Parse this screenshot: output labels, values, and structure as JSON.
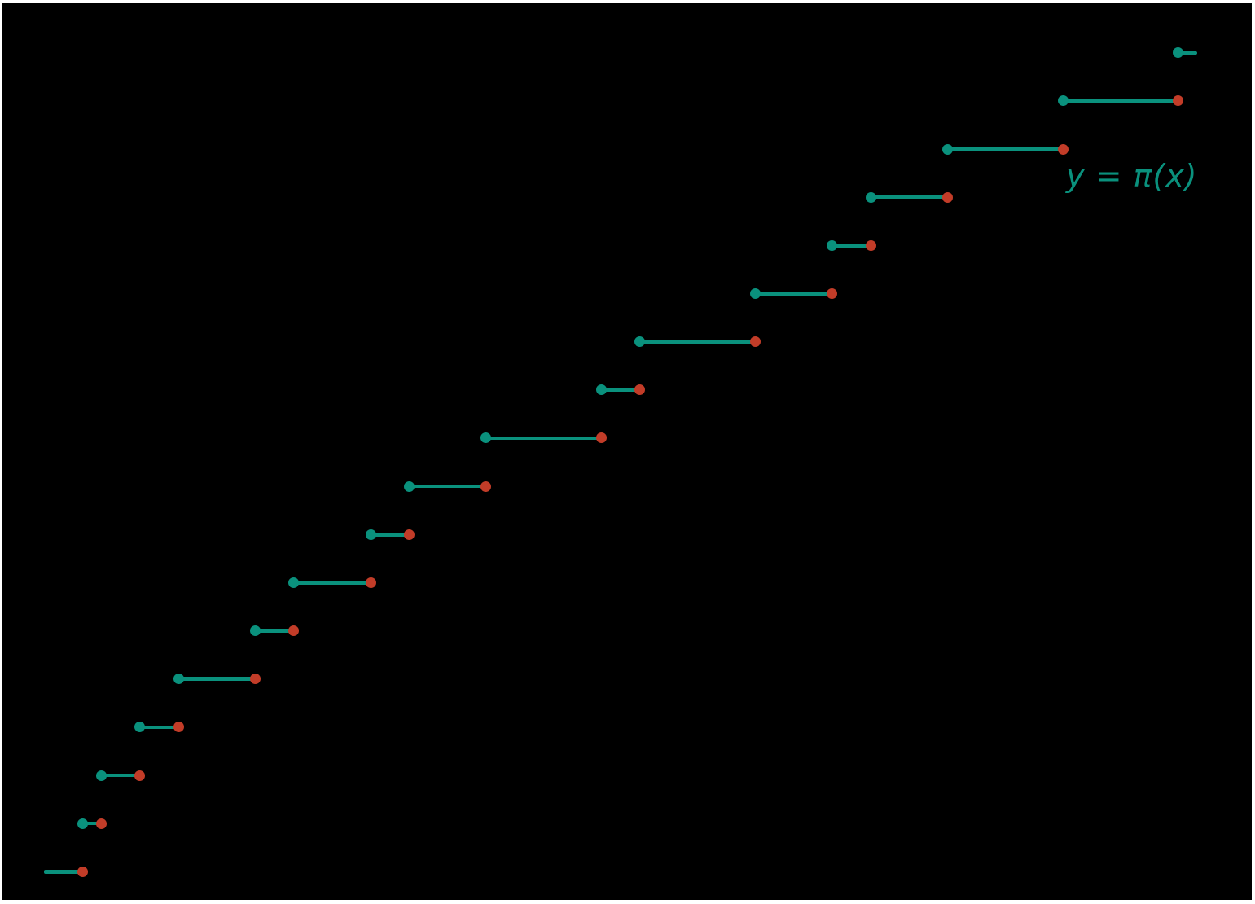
{
  "figure": {
    "background_color": "#000000",
    "frame_color": "#ffffff",
    "label": {
      "text": "y = π(x)",
      "color": "#0a917d"
    }
  },
  "chart_data": {
    "type": "line",
    "subtype": "step-function",
    "title": "",
    "xlabel": "",
    "ylabel": "",
    "xlim": [
      0,
      62.5
    ],
    "ylim": [
      -0.5,
      18
    ],
    "grid": false,
    "legend_position": "none",
    "annotation": "y = π(x)",
    "description": "Prime counting function π(x) plotted for x in [0, 60]; closed left endpoints (teal dots), open right endpoints (red dots)",
    "primes": [
      2,
      3,
      5,
      7,
      11,
      13,
      17,
      19,
      23,
      29,
      31,
      37,
      41,
      43,
      47,
      53,
      59
    ],
    "line_color": "#0a917d",
    "closed_dot_color": "#0a917d",
    "open_dot_color": "#c23c28",
    "steps": [
      {
        "x_start": 0,
        "x_end": 2,
        "y": 0,
        "closed_left": false,
        "open_right": true
      },
      {
        "x_start": 2,
        "x_end": 3,
        "y": 1,
        "closed_left": true,
        "open_right": true
      },
      {
        "x_start": 3,
        "x_end": 5,
        "y": 2,
        "closed_left": true,
        "open_right": true
      },
      {
        "x_start": 5,
        "x_end": 7,
        "y": 3,
        "closed_left": true,
        "open_right": true
      },
      {
        "x_start": 7,
        "x_end": 11,
        "y": 4,
        "closed_left": true,
        "open_right": true
      },
      {
        "x_start": 11,
        "x_end": 13,
        "y": 5,
        "closed_left": true,
        "open_right": true
      },
      {
        "x_start": 13,
        "x_end": 17,
        "y": 6,
        "closed_left": true,
        "open_right": true
      },
      {
        "x_start": 17,
        "x_end": 19,
        "y": 7,
        "closed_left": true,
        "open_right": true
      },
      {
        "x_start": 19,
        "x_end": 23,
        "y": 8,
        "closed_left": true,
        "open_right": true
      },
      {
        "x_start": 23,
        "x_end": 29,
        "y": 9,
        "closed_left": true,
        "open_right": true
      },
      {
        "x_start": 29,
        "x_end": 31,
        "y": 10,
        "closed_left": true,
        "open_right": true
      },
      {
        "x_start": 31,
        "x_end": 37,
        "y": 11,
        "closed_left": true,
        "open_right": true
      },
      {
        "x_start": 37,
        "x_end": 41,
        "y": 12,
        "closed_left": true,
        "open_right": true
      },
      {
        "x_start": 41,
        "x_end": 43,
        "y": 13,
        "closed_left": true,
        "open_right": true
      },
      {
        "x_start": 43,
        "x_end": 47,
        "y": 14,
        "closed_left": true,
        "open_right": true
      },
      {
        "x_start": 47,
        "x_end": 53,
        "y": 15,
        "closed_left": true,
        "open_right": true
      },
      {
        "x_start": 53,
        "x_end": 59,
        "y": 16,
        "closed_left": true,
        "open_right": true
      },
      {
        "x_start": 59,
        "x_end": 60,
        "y": 17,
        "closed_left": true,
        "open_right": false
      }
    ]
  }
}
